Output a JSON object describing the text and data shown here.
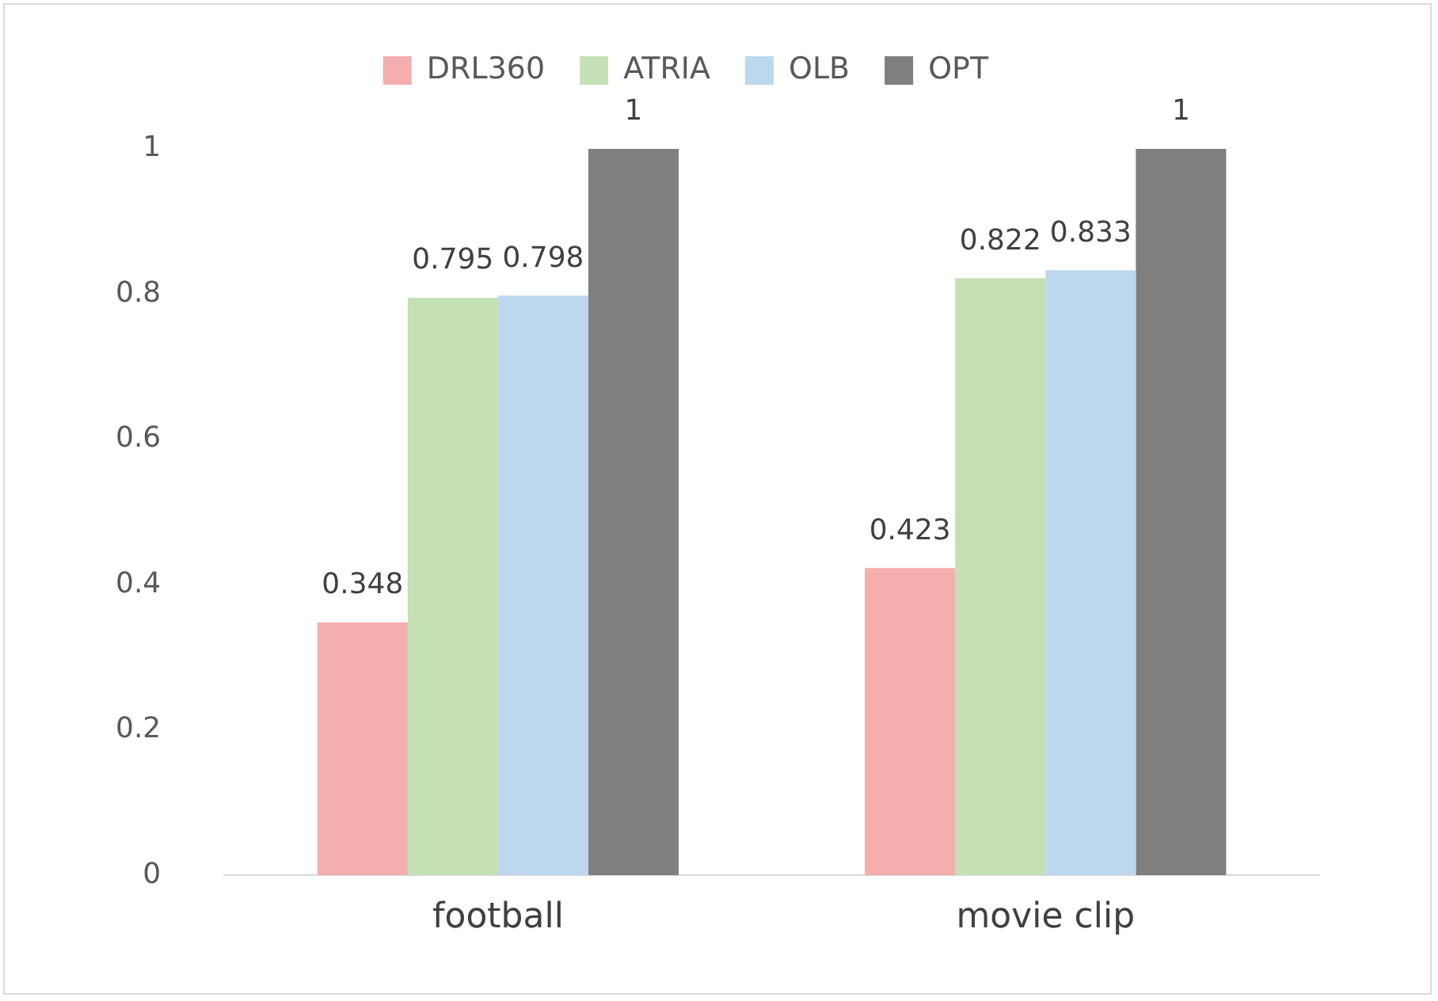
{
  "chart_data": {
    "type": "bar",
    "categories": [
      "football",
      "movie clip"
    ],
    "series": [
      {
        "name": "DRL360",
        "color": "#f4aeae",
        "values": [
          0.348,
          0.423
        ]
      },
      {
        "name": "ATRIA",
        "color": "#c5e0b4",
        "values": [
          0.795,
          0.822
        ]
      },
      {
        "name": "OLB",
        "color": "#bdd7ee",
        "values": [
          0.798,
          0.833
        ]
      },
      {
        "name": "OPT",
        "color": "#7f7f7f",
        "values": [
          1,
          1
        ]
      }
    ],
    "ylim": [
      0,
      1
    ],
    "yticks": [
      0,
      0.2,
      0.4,
      0.6,
      0.8,
      1
    ],
    "grid": false,
    "legend": "top",
    "data_labels": true
  }
}
